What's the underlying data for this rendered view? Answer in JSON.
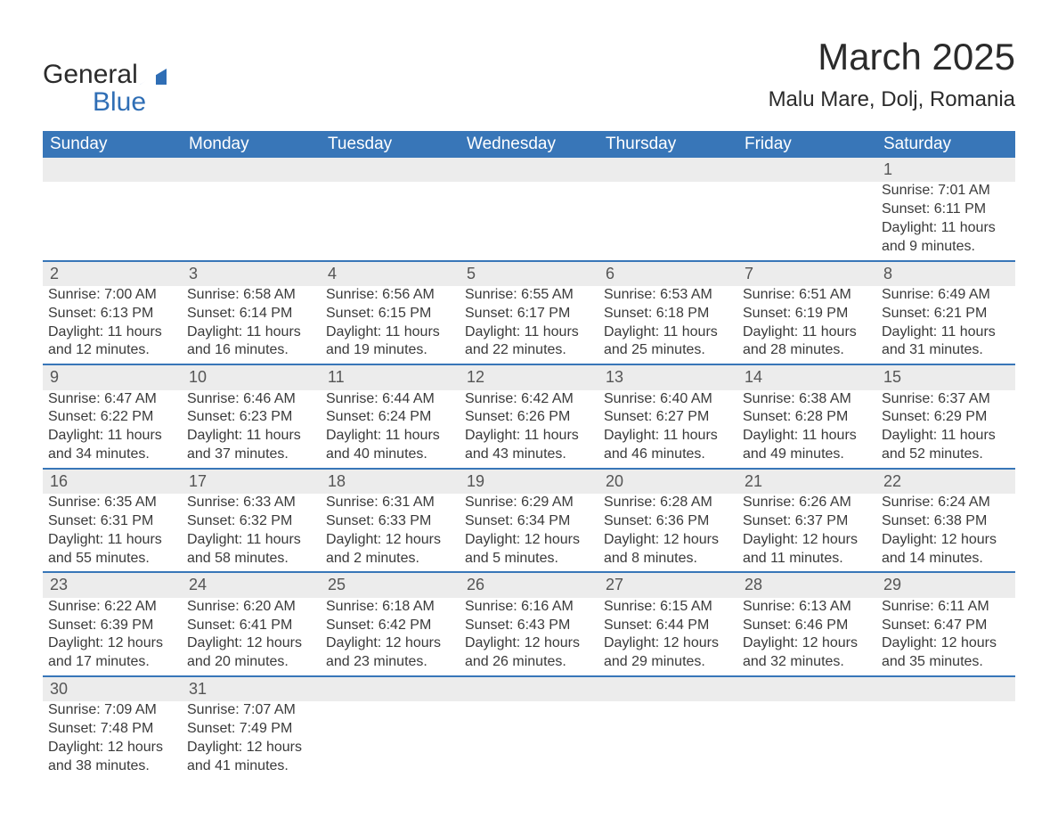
{
  "logo": {
    "word1": "General",
    "word2": "Blue",
    "accent_color": "#2f6eb5"
  },
  "title": "March 2025",
  "location": "Malu Mare, Dolj, Romania",
  "header_bg": "#3876b8",
  "header_fg": "#ffffff",
  "daynum_bg": "#ececec",
  "border_color": "#3876b8",
  "text_color": "#3a3a3a",
  "background": "#ffffff",
  "font_family": "Arial",
  "title_fontsize": 42,
  "location_fontsize": 24,
  "header_fontsize": 19,
  "cell_fontsize": 16,
  "columns": [
    "Sunday",
    "Monday",
    "Tuesday",
    "Wednesday",
    "Thursday",
    "Friday",
    "Saturday"
  ],
  "weeks": [
    [
      null,
      null,
      null,
      null,
      null,
      null,
      {
        "n": "1",
        "sunrise": "7:01 AM",
        "sunset": "6:11 PM",
        "daylight": "11 hours and 9 minutes."
      }
    ],
    [
      {
        "n": "2",
        "sunrise": "7:00 AM",
        "sunset": "6:13 PM",
        "daylight": "11 hours and 12 minutes."
      },
      {
        "n": "3",
        "sunrise": "6:58 AM",
        "sunset": "6:14 PM",
        "daylight": "11 hours and 16 minutes."
      },
      {
        "n": "4",
        "sunrise": "6:56 AM",
        "sunset": "6:15 PM",
        "daylight": "11 hours and 19 minutes."
      },
      {
        "n": "5",
        "sunrise": "6:55 AM",
        "sunset": "6:17 PM",
        "daylight": "11 hours and 22 minutes."
      },
      {
        "n": "6",
        "sunrise": "6:53 AM",
        "sunset": "6:18 PM",
        "daylight": "11 hours and 25 minutes."
      },
      {
        "n": "7",
        "sunrise": "6:51 AM",
        "sunset": "6:19 PM",
        "daylight": "11 hours and 28 minutes."
      },
      {
        "n": "8",
        "sunrise": "6:49 AM",
        "sunset": "6:21 PM",
        "daylight": "11 hours and 31 minutes."
      }
    ],
    [
      {
        "n": "9",
        "sunrise": "6:47 AM",
        "sunset": "6:22 PM",
        "daylight": "11 hours and 34 minutes."
      },
      {
        "n": "10",
        "sunrise": "6:46 AM",
        "sunset": "6:23 PM",
        "daylight": "11 hours and 37 minutes."
      },
      {
        "n": "11",
        "sunrise": "6:44 AM",
        "sunset": "6:24 PM",
        "daylight": "11 hours and 40 minutes."
      },
      {
        "n": "12",
        "sunrise": "6:42 AM",
        "sunset": "6:26 PM",
        "daylight": "11 hours and 43 minutes."
      },
      {
        "n": "13",
        "sunrise": "6:40 AM",
        "sunset": "6:27 PM",
        "daylight": "11 hours and 46 minutes."
      },
      {
        "n": "14",
        "sunrise": "6:38 AM",
        "sunset": "6:28 PM",
        "daylight": "11 hours and 49 minutes."
      },
      {
        "n": "15",
        "sunrise": "6:37 AM",
        "sunset": "6:29 PM",
        "daylight": "11 hours and 52 minutes."
      }
    ],
    [
      {
        "n": "16",
        "sunrise": "6:35 AM",
        "sunset": "6:31 PM",
        "daylight": "11 hours and 55 minutes."
      },
      {
        "n": "17",
        "sunrise": "6:33 AM",
        "sunset": "6:32 PM",
        "daylight": "11 hours and 58 minutes."
      },
      {
        "n": "18",
        "sunrise": "6:31 AM",
        "sunset": "6:33 PM",
        "daylight": "12 hours and 2 minutes."
      },
      {
        "n": "19",
        "sunrise": "6:29 AM",
        "sunset": "6:34 PM",
        "daylight": "12 hours and 5 minutes."
      },
      {
        "n": "20",
        "sunrise": "6:28 AM",
        "sunset": "6:36 PM",
        "daylight": "12 hours and 8 minutes."
      },
      {
        "n": "21",
        "sunrise": "6:26 AM",
        "sunset": "6:37 PM",
        "daylight": "12 hours and 11 minutes."
      },
      {
        "n": "22",
        "sunrise": "6:24 AM",
        "sunset": "6:38 PM",
        "daylight": "12 hours and 14 minutes."
      }
    ],
    [
      {
        "n": "23",
        "sunrise": "6:22 AM",
        "sunset": "6:39 PM",
        "daylight": "12 hours and 17 minutes."
      },
      {
        "n": "24",
        "sunrise": "6:20 AM",
        "sunset": "6:41 PM",
        "daylight": "12 hours and 20 minutes."
      },
      {
        "n": "25",
        "sunrise": "6:18 AM",
        "sunset": "6:42 PM",
        "daylight": "12 hours and 23 minutes."
      },
      {
        "n": "26",
        "sunrise": "6:16 AM",
        "sunset": "6:43 PM",
        "daylight": "12 hours and 26 minutes."
      },
      {
        "n": "27",
        "sunrise": "6:15 AM",
        "sunset": "6:44 PM",
        "daylight": "12 hours and 29 minutes."
      },
      {
        "n": "28",
        "sunrise": "6:13 AM",
        "sunset": "6:46 PM",
        "daylight": "12 hours and 32 minutes."
      },
      {
        "n": "29",
        "sunrise": "6:11 AM",
        "sunset": "6:47 PM",
        "daylight": "12 hours and 35 minutes."
      }
    ],
    [
      {
        "n": "30",
        "sunrise": "7:09 AM",
        "sunset": "7:48 PM",
        "daylight": "12 hours and 38 minutes."
      },
      {
        "n": "31",
        "sunrise": "7:07 AM",
        "sunset": "7:49 PM",
        "daylight": "12 hours and 41 minutes."
      },
      null,
      null,
      null,
      null,
      null
    ]
  ],
  "labels": {
    "sunrise": "Sunrise:",
    "sunset": "Sunset:",
    "daylight": "Daylight:"
  }
}
